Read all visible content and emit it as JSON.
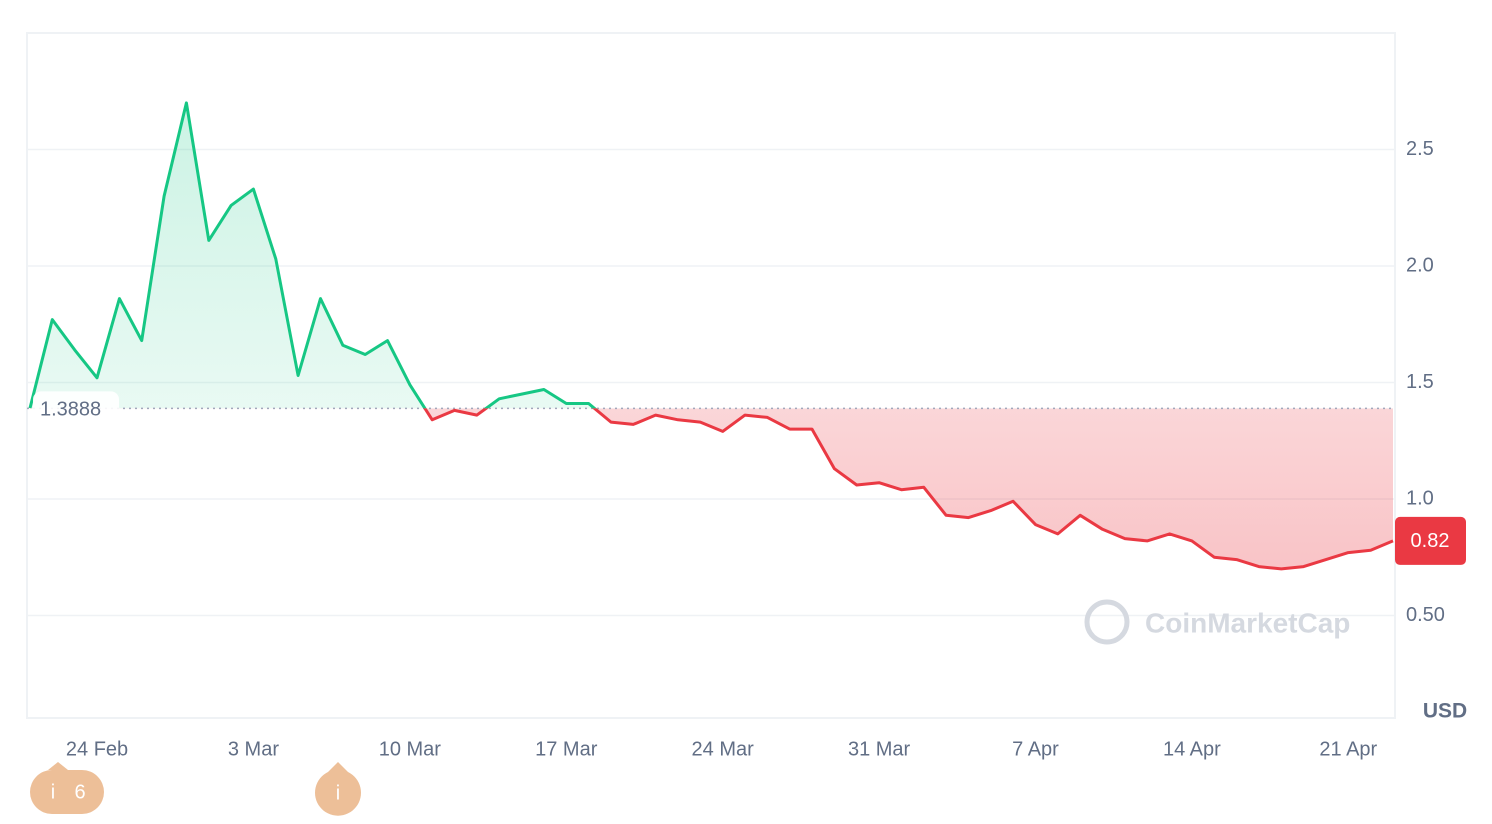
{
  "chart_data": {
    "type": "line",
    "categories": [
      null,
      null,
      null,
      "24 Feb",
      null,
      null,
      null,
      null,
      null,
      null,
      "3 Mar",
      null,
      null,
      null,
      null,
      null,
      null,
      "10 Mar",
      null,
      null,
      null,
      null,
      null,
      null,
      "17 Mar",
      null,
      null,
      null,
      null,
      null,
      null,
      "24 Mar",
      null,
      null,
      null,
      null,
      null,
      null,
      "31 Mar",
      null,
      null,
      null,
      null,
      null,
      null,
      "7 Apr",
      null,
      null,
      null,
      null,
      null,
      null,
      "14 Apr",
      null,
      null,
      null,
      null,
      null,
      null,
      "21 Apr",
      null,
      null
    ],
    "values": [
      1.39,
      1.77,
      1.64,
      1.52,
      1.86,
      1.68,
      2.3,
      2.7,
      2.11,
      2.26,
      2.33,
      2.03,
      1.53,
      1.86,
      1.66,
      1.62,
      1.68,
      1.49,
      1.34,
      1.38,
      1.36,
      1.43,
      1.45,
      1.47,
      1.41,
      1.41,
      1.33,
      1.32,
      1.36,
      1.34,
      1.33,
      1.29,
      1.36,
      1.35,
      1.3,
      1.3,
      1.13,
      1.06,
      1.07,
      1.04,
      1.05,
      0.93,
      0.92,
      0.95,
      0.99,
      0.89,
      0.85,
      0.93,
      0.87,
      0.83,
      0.82,
      0.85,
      0.82,
      0.75,
      0.74,
      0.71,
      0.7,
      0.71,
      0.74,
      0.77,
      0.78,
      0.82
    ],
    "baseline": 1.3888,
    "colors": {
      "above": "#16c784",
      "below": "#ea3943"
    },
    "ylim": [
      0.06,
      3.0
    ],
    "yticks": [
      {
        "value": 0.5,
        "label": "0.50"
      },
      {
        "value": 1,
        "label": "1.0"
      },
      1.5,
      {
        "value": 2,
        "label": "2.0"
      },
      2.5
    ],
    "grid": true,
    "currency": "USD",
    "watermark": "CoinMarketCap"
  },
  "events": [
    {
      "icon": "i",
      "count": "6"
    },
    {
      "icon": "i"
    }
  ]
}
